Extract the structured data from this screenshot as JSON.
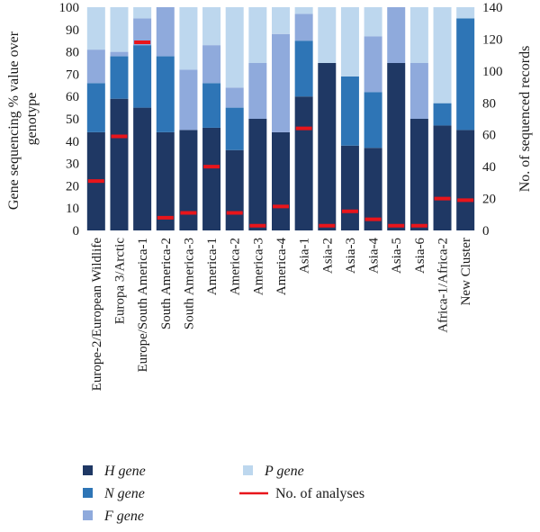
{
  "chart_data": {
    "type": "bar",
    "stacked": true,
    "ylabel": "Gene sequencing % value over genotype",
    "ylabel_lines": [
      "Gene sequencing % value over",
      "genotype"
    ],
    "y2label": "No. of sequenced records",
    "ylim": [
      0,
      100
    ],
    "y2lim": [
      0,
      140
    ],
    "yticks": [
      0,
      10,
      20,
      30,
      40,
      50,
      60,
      70,
      80,
      90,
      100
    ],
    "y2ticks": [
      0,
      20,
      40,
      60,
      80,
      100,
      120,
      140
    ],
    "grid": false,
    "legend_position": "bottom",
    "categories": [
      "Europe-2/European Wildlife",
      "Europa 3/Arctic",
      "Europe/South America-1",
      "South America-2",
      "South America-3",
      "America-1",
      "America-2",
      "America-3",
      "America-4",
      "Asia-1",
      "Asia-2",
      "Asia-3",
      "Asia-4",
      "Asia-5",
      "Asia-6",
      "Africa-1/Africa-2",
      "New Cluster"
    ],
    "series": [
      {
        "name": "H gene",
        "color": "#1f3864",
        "values": [
          44,
          59,
          55,
          44,
          45,
          46,
          36,
          50,
          44,
          60,
          75,
          38,
          37,
          75,
          50,
          47,
          45
        ]
      },
      {
        "name": "N gene",
        "color": "#2e75b6",
        "values": [
          22,
          19,
          28,
          34,
          0,
          20,
          19,
          0,
          0,
          25,
          0,
          31,
          25,
          0,
          0,
          10,
          50
        ]
      },
      {
        "name": "F gene",
        "color": "#8faadc",
        "values": [
          15,
          2,
          12,
          22,
          27,
          17,
          9,
          25,
          44,
          12,
          0,
          0,
          25,
          25,
          25,
          0,
          0
        ]
      },
      {
        "name": "P gene",
        "color": "#bdd7ee",
        "values": [
          19,
          20,
          5,
          0,
          28,
          17,
          36,
          25,
          12,
          3,
          25,
          31,
          13,
          0,
          25,
          43,
          5
        ]
      }
    ],
    "analyses": {
      "name": "No. of analyses",
      "color": "#e8151b",
      "values": [
        31,
        59,
        118,
        8,
        11,
        40,
        11,
        3,
        15,
        64,
        3,
        12,
        7,
        3,
        3,
        20,
        19
      ]
    },
    "legend": [
      {
        "label": "H gene",
        "color": "#1f3864",
        "kind": "box",
        "italic": true
      },
      {
        "label": "P gene",
        "color": "#bdd7ee",
        "kind": "box",
        "italic": true
      },
      {
        "label": "N gene",
        "color": "#2e75b6",
        "kind": "box",
        "italic": true
      },
      {
        "label": "No. of analyses",
        "color": "#e8151b",
        "kind": "line",
        "italic": false
      },
      {
        "label": "F gene",
        "color": "#8faadc",
        "kind": "box",
        "italic": true
      }
    ]
  }
}
